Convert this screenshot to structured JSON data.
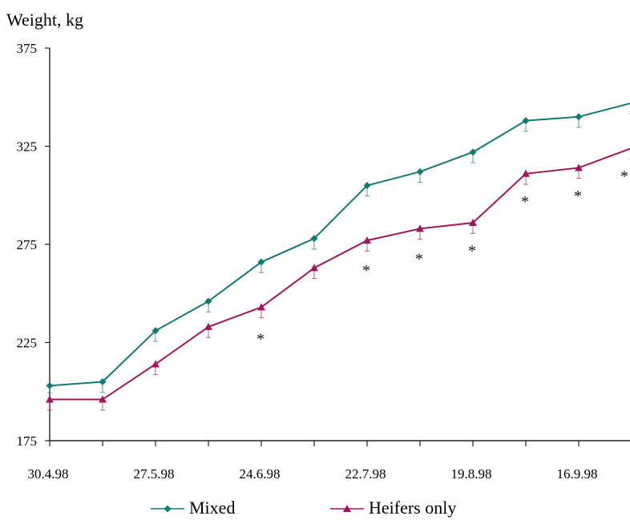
{
  "chart_data": {
    "type": "line",
    "title": "Weight, kg",
    "xlabel": "",
    "ylabel": "Weight, kg",
    "ylim": [
      175,
      375
    ],
    "yticks": [
      175,
      225,
      275,
      325,
      375
    ],
    "x": [
      "30.4.98",
      "13.5.98",
      "27.5.98",
      "10.6.98",
      "24.6.98",
      "8.7.98",
      "22.7.98",
      "5.8.98",
      "19.8.98",
      "2.9.98",
      "16.9.98",
      "30.9.98"
    ],
    "x_tick_labels": [
      "30.4.98",
      "",
      "27.5.98",
      "",
      "24.6.98",
      "",
      "22.7.98",
      "",
      "19.8.98",
      "",
      "16.9.98",
      ""
    ],
    "legend_position": "bottom",
    "grid": false,
    "series": [
      {
        "name": "Mixed",
        "color": "#157a72",
        "marker": "diamond",
        "values": [
          203,
          205,
          231,
          246,
          266,
          278,
          305,
          312,
          322,
          338,
          340,
          347
        ],
        "errors": [
          2,
          3,
          3,
          3,
          3,
          3,
          3,
          3,
          3,
          3,
          3,
          3
        ]
      },
      {
        "name": "Heifers only",
        "color": "#a3145a",
        "marker": "triangle",
        "values": [
          196,
          196,
          214,
          233,
          243,
          263,
          277,
          283,
          286,
          311,
          314,
          324
        ],
        "errors": [
          3,
          3,
          3,
          3,
          3,
          3,
          3,
          3,
          3,
          3,
          3,
          3
        ]
      }
    ],
    "significance_marks": [
      {
        "x": "24.6.98",
        "y": 229,
        "label": "*"
      },
      {
        "x": "22.7.98",
        "y": 264,
        "label": "*"
      },
      {
        "x": "5.8.98",
        "y": 270,
        "label": "*"
      },
      {
        "x": "19.8.98",
        "y": 274,
        "label": "*"
      },
      {
        "x": "2.9.98",
        "y": 299,
        "label": "*"
      },
      {
        "x": "16.9.98",
        "y": 302,
        "label": "*"
      },
      {
        "x": "30.9.98",
        "y": 312,
        "label": "*"
      }
    ]
  }
}
